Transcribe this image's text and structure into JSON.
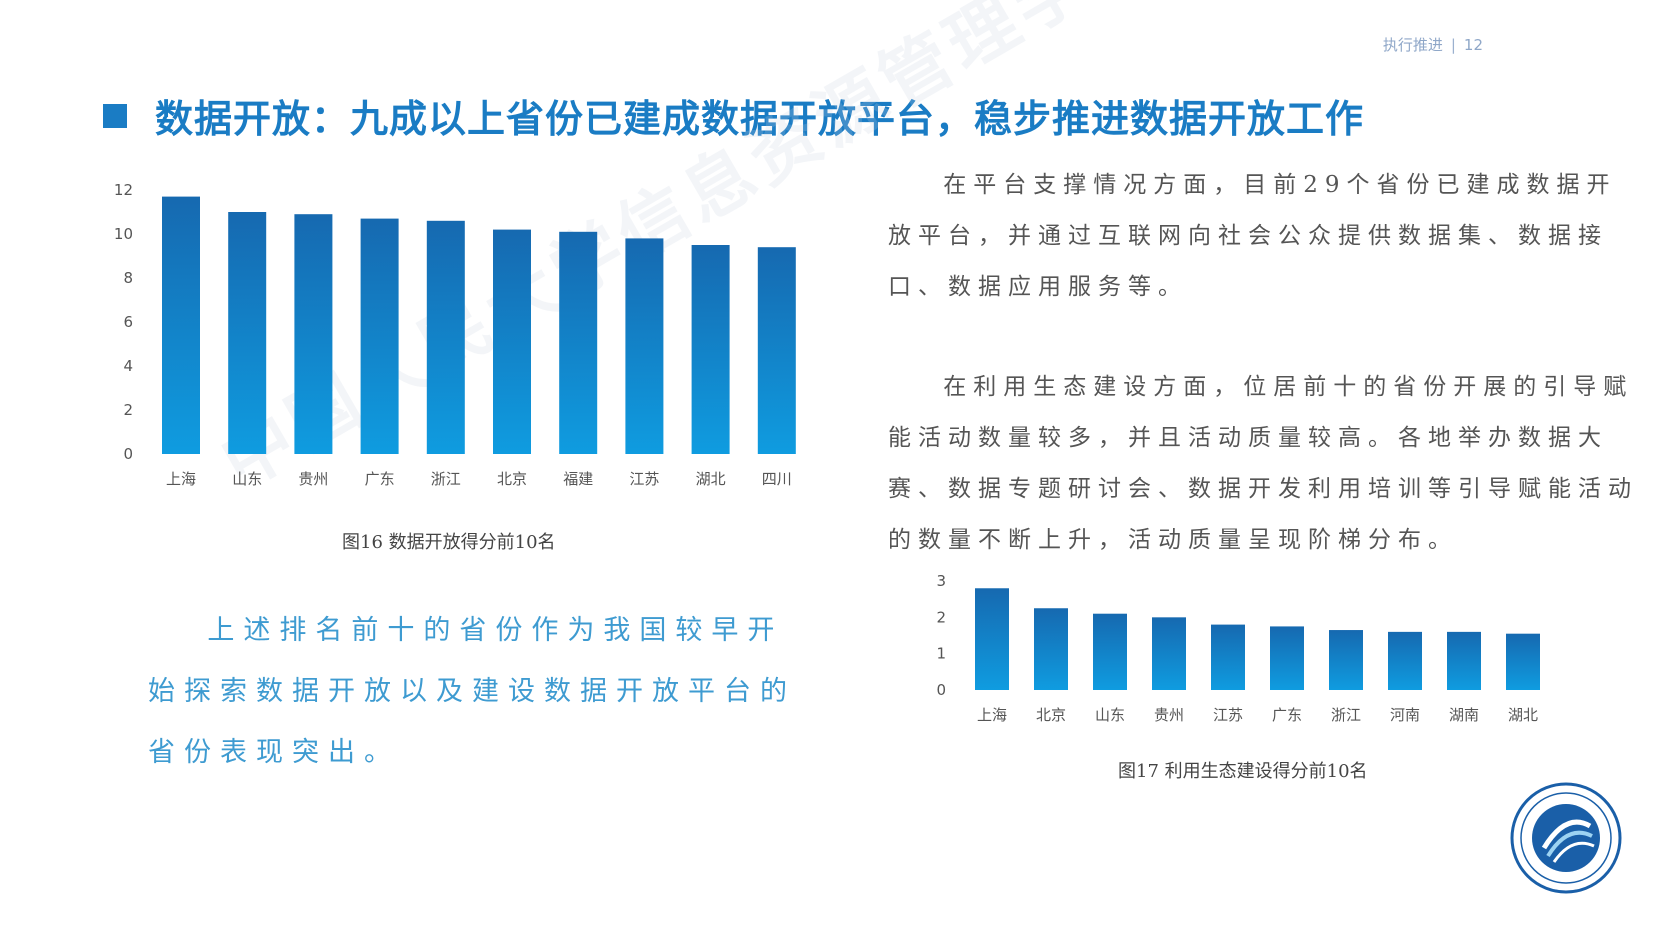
{
  "header": {
    "section": "执行推进",
    "page": "12"
  },
  "title": "数据开放：九成以上省份已建成数据开放平台，稳步推进数据开放工作",
  "watermark": "中国人民大学信息资源管理学院",
  "colors": {
    "accent": "#1a7cc4",
    "bar_dark": "#1669b0",
    "bar_light": "#0f9ce0",
    "para_blue": "#3e9bd1"
  },
  "figure16": {
    "caption": "图16    数据开放得分前10名"
  },
  "figure17": {
    "caption": "图17    利用生态建设得分前10名"
  },
  "right_text": {
    "p1": "在平台支撑情况方面，目前29个省份已建成数据开放平台，并通过互联网向社会公众提供数据集、数据接口、数据应用服务等。",
    "p2": "在利用生态建设方面，位居前十的省份开展的引导赋能活动数量较多，并且活动质量较高。各地举办数据大赛、数据专题研讨会、数据开发利用培训等引导赋能活动的数量不断上升，活动质量呈现阶梯分布。"
  },
  "left_text": {
    "p1": "上述排名前十的省份作为我国较早开始探索数据开放以及建设数据开放平台的省份表现突出。"
  },
  "logo": {
    "icon": "university-seal-icon"
  },
  "chart_data": [
    {
      "type": "bar",
      "categories": [
        "上海",
        "山东",
        "贵州",
        "广东",
        "浙江",
        "北京",
        "福建",
        "江苏",
        "湖北",
        "四川"
      ],
      "values": [
        11.7,
        11.0,
        10.9,
        10.7,
        10.6,
        10.2,
        10.1,
        9.8,
        9.5,
        9.4
      ],
      "ylim": [
        0,
        12
      ],
      "yticks": [
        0,
        2,
        4,
        6,
        8,
        10,
        12
      ],
      "title": "",
      "xlabel": "",
      "ylabel": ""
    },
    {
      "type": "bar",
      "categories": [
        "上海",
        "北京",
        "山东",
        "贵州",
        "江苏",
        "广东",
        "浙江",
        "河南",
        "湖南",
        "湖北"
      ],
      "values": [
        2.8,
        2.25,
        2.1,
        2.0,
        1.8,
        1.75,
        1.65,
        1.6,
        1.6,
        1.55
      ],
      "ylim": [
        0,
        3
      ],
      "yticks": [
        0,
        1,
        2,
        3
      ],
      "title": "",
      "xlabel": "",
      "ylabel": ""
    }
  ]
}
